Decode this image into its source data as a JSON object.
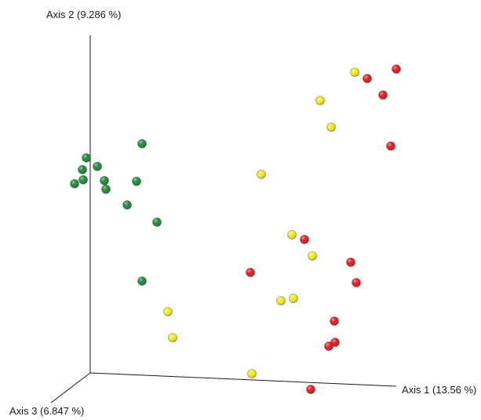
{
  "chart_data": {
    "type": "scatter",
    "projection": "3d-pcoa",
    "axes": {
      "x": {
        "label": "Axis 1 (13.56 %)"
      },
      "y": {
        "label": "Axis 2 (9.286 %)"
      },
      "z": {
        "label": "Axis 3 (6.847 %)"
      }
    },
    "grid": false,
    "legend": "none",
    "series": [
      {
        "color": "#1f8a3a",
        "points": [
          [
            181,
            183
          ],
          [
            110,
            201
          ],
          [
            124,
            212
          ],
          [
            105,
            216
          ],
          [
            106,
            229
          ],
          [
            95,
            234
          ],
          [
            133,
            230
          ],
          [
            135,
            241
          ],
          [
            174,
            231
          ],
          [
            162,
            261
          ],
          [
            200,
            283
          ],
          [
            181,
            358
          ]
        ]
      },
      {
        "color": "#f2ea1c",
        "points": [
          [
            452,
            92
          ],
          [
            408,
            128
          ],
          [
            422,
            162
          ],
          [
            333,
            222
          ],
          [
            372,
            299
          ],
          [
            398,
            326
          ],
          [
            374,
            380
          ],
          [
            358,
            383
          ],
          [
            214,
            397
          ],
          [
            220,
            430
          ],
          [
            321,
            476
          ]
        ]
      },
      {
        "color": "#e8181c",
        "points": [
          [
            505,
            88
          ],
          [
            468,
            100
          ],
          [
            488,
            121
          ],
          [
            498,
            186
          ],
          [
            388,
            305
          ],
          [
            447,
            334
          ],
          [
            454,
            360
          ],
          [
            319,
            347
          ],
          [
            426,
            409
          ],
          [
            427,
            436
          ],
          [
            419,
            441
          ],
          [
            396,
            496
          ]
        ]
      }
    ]
  }
}
